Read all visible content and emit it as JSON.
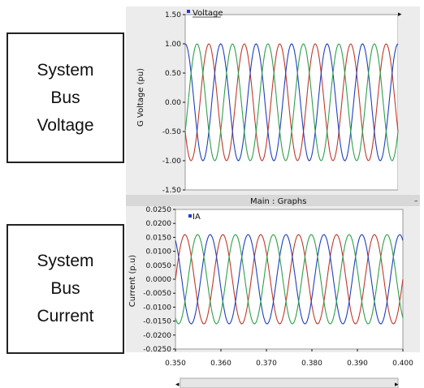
{
  "labels": {
    "voltage": [
      "System",
      "Bus",
      "Voltage"
    ],
    "current": [
      "System",
      "Bus",
      "Current"
    ]
  },
  "divider_title": "Main : Graphs",
  "chart_data": [
    {
      "type": "line",
      "legend": "Voltage",
      "ylabel": "G Voltage (pu)",
      "ylim": [
        -1.5,
        1.5
      ],
      "yticks": [
        "1.50",
        "1.00",
        "0.50",
        "0.00",
        "-0.50",
        "-1.00",
        "-1.50"
      ],
      "yticks_values": [
        1.5,
        1.0,
        0.5,
        0.0,
        -0.5,
        -1.0,
        -1.5
      ],
      "xlim": [
        0.35,
        0.4
      ],
      "grid": false,
      "series": [
        {
          "color": "#c0392b",
          "amplitude": 1.0,
          "frequency_hz": 120,
          "phase_deg": 210
        },
        {
          "color": "#1f3fbf",
          "amplitude": 1.0,
          "frequency_hz": 120,
          "phase_deg": 90
        },
        {
          "color": "#2ea04a",
          "amplitude": 1.0,
          "frequency_hz": 120,
          "phase_deg": 330
        }
      ]
    },
    {
      "type": "line",
      "legend": "IA",
      "ylabel": "Current (p.u)",
      "xlabel": "",
      "ylim": [
        -0.025,
        0.025
      ],
      "yticks": [
        "0.0250",
        "0.0200",
        "0.0150",
        "0.0100",
        "0.0050",
        "0.0000",
        "-0.0050",
        "-0.0100",
        "-0.0150",
        "-0.0200",
        "-0.0250"
      ],
      "yticks_values": [
        0.025,
        0.02,
        0.015,
        0.01,
        0.005,
        0.0,
        -0.005,
        -0.01,
        -0.015,
        -0.02,
        -0.025
      ],
      "xlim": [
        0.35,
        0.4
      ],
      "xticks": [
        "0.350",
        "0.360",
        "0.370",
        "0.380",
        "0.390",
        "0.400"
      ],
      "xticks_values": [
        0.35,
        0.36,
        0.37,
        0.38,
        0.39,
        0.4
      ],
      "grid": false,
      "series": [
        {
          "color": "#c0392b",
          "amplitude": 0.016,
          "frequency_hz": 120,
          "phase_deg": 0
        },
        {
          "color": "#1f3fbf",
          "amplitude": 0.016,
          "frequency_hz": 120,
          "phase_deg": 120
        },
        {
          "color": "#2ea04a",
          "amplitude": 0.016,
          "frequency_hz": 120,
          "phase_deg": 240
        }
      ]
    }
  ]
}
